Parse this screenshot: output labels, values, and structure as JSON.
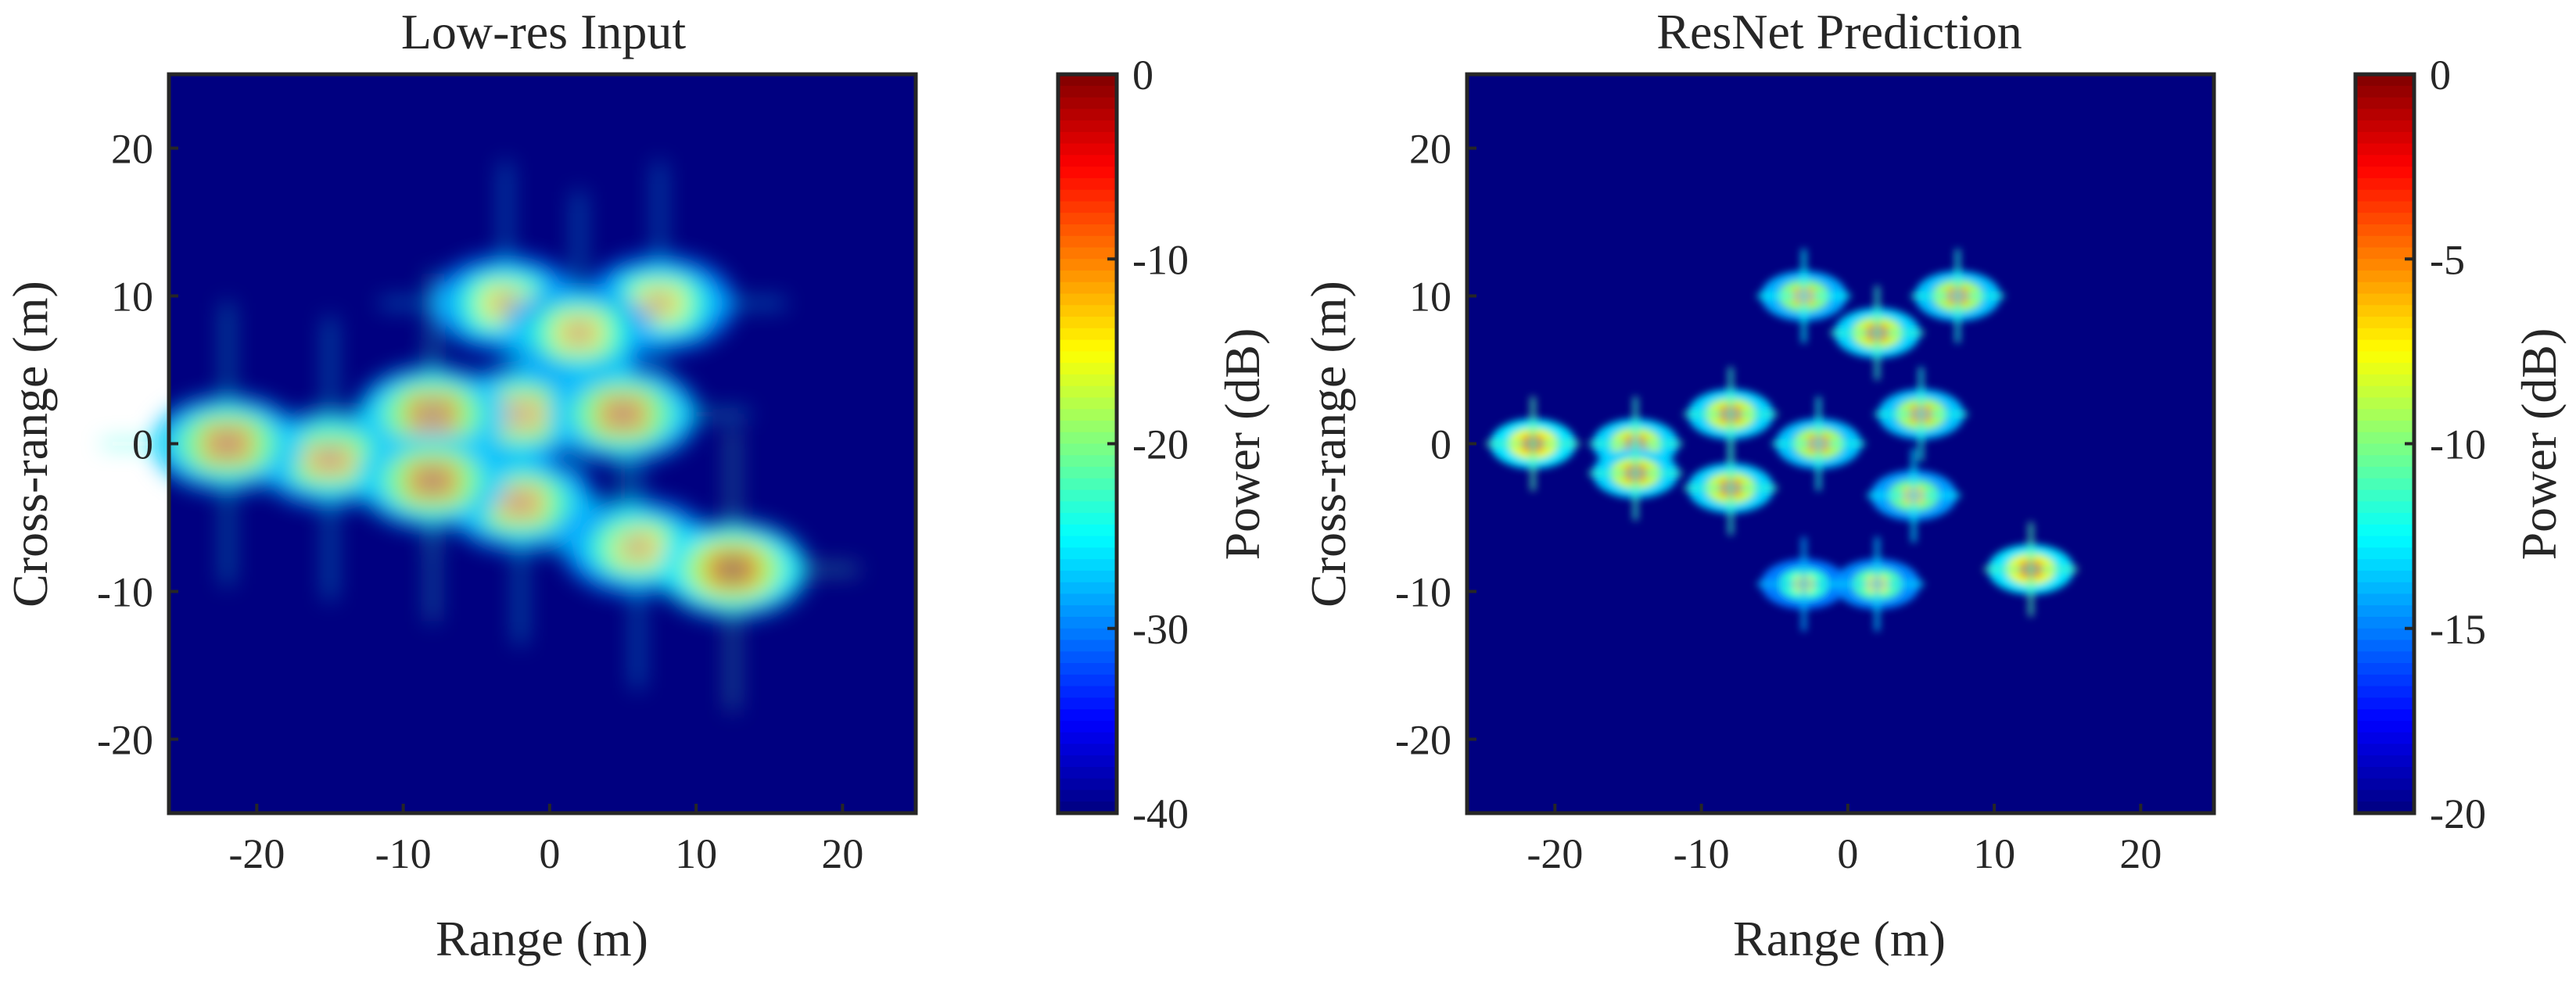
{
  "chart_data": [
    {
      "type": "heatmap",
      "title": "Low-res Input",
      "xlabel": "Range (m)",
      "ylabel": "Cross-range (m)",
      "xlim": [
        -26,
        25
      ],
      "ylim": [
        -25,
        25
      ],
      "xticks": [
        -20,
        -10,
        0,
        10,
        20
      ],
      "yticks": [
        -20,
        -10,
        0,
        10,
        20
      ],
      "xtick_labels": [
        "-20",
        "-10",
        "0",
        "10",
        "20"
      ],
      "ytick_labels": [
        "-20",
        "-10",
        "0",
        "10",
        "20"
      ],
      "colormap": "jet",
      "colorbar": {
        "label": "Power (dB)",
        "range": [
          -40,
          0
        ],
        "ticks": [
          0,
          -10,
          -20,
          -30,
          -40
        ],
        "tick_labels": [
          "0",
          "-10",
          "-20",
          "-30",
          "-40"
        ]
      },
      "background_db": -40,
      "scatterers": [
        {
          "x": 12.5,
          "y": -8.5,
          "db": 0
        },
        {
          "x": -8,
          "y": 2,
          "db": -3
        },
        {
          "x": -8,
          "y": -2.5,
          "db": -3
        },
        {
          "x": -2,
          "y": 2,
          "db": -6
        },
        {
          "x": -2,
          "y": -4,
          "db": -6
        },
        {
          "x": 5,
          "y": 2,
          "db": -4
        },
        {
          "x": 6,
          "y": -7,
          "db": -8
        },
        {
          "x": -15,
          "y": -1,
          "db": -6
        },
        {
          "x": -22,
          "y": 0,
          "db": -4
        },
        {
          "x": 2,
          "y": 7.5,
          "db": -8
        },
        {
          "x": 7.5,
          "y": 9.5,
          "db": -9
        },
        {
          "x": -3,
          "y": 9.5,
          "db": -9
        }
      ]
    },
    {
      "type": "heatmap",
      "title": "ResNet Prediction",
      "xlabel": "Range (m)",
      "ylabel": "Cross-range (m)",
      "xlim": [
        -26,
        25
      ],
      "ylim": [
        -25,
        25
      ],
      "xticks": [
        -20,
        -10,
        0,
        10,
        20
      ],
      "yticks": [
        -20,
        -10,
        0,
        10,
        20
      ],
      "xtick_labels": [
        "-20",
        "-10",
        "0",
        "10",
        "20"
      ],
      "ytick_labels": [
        "-20",
        "-10",
        "0",
        "10",
        "20"
      ],
      "colormap": "jet",
      "colorbar": {
        "label": "Power (dB)",
        "range": [
          -20,
          0
        ],
        "ticks": [
          0,
          -5,
          -10,
          -15,
          -20
        ],
        "tick_labels": [
          "0",
          "-5",
          "-10",
          "-15",
          "-20"
        ]
      },
      "background_db": -20,
      "scatterers": [
        {
          "x": 12.5,
          "y": -8.5,
          "db": 0
        },
        {
          "x": -21.5,
          "y": 0,
          "db": 0
        },
        {
          "x": -14.5,
          "y": 0,
          "db": -1
        },
        {
          "x": -14.5,
          "y": -2,
          "db": -1
        },
        {
          "x": -8,
          "y": 2,
          "db": -1
        },
        {
          "x": -8,
          "y": -3,
          "db": -1
        },
        {
          "x": -2,
          "y": 0,
          "db": -2
        },
        {
          "x": 2,
          "y": 7.5,
          "db": -1
        },
        {
          "x": 7.5,
          "y": 10,
          "db": -2
        },
        {
          "x": -3,
          "y": 10,
          "db": -3
        },
        {
          "x": 5,
          "y": 2,
          "db": -2
        },
        {
          "x": 4.5,
          "y": -3.5,
          "db": -4
        },
        {
          "x": 2,
          "y": -9.5,
          "db": -5
        },
        {
          "x": -3,
          "y": -9.5,
          "db": -6
        }
      ]
    }
  ]
}
